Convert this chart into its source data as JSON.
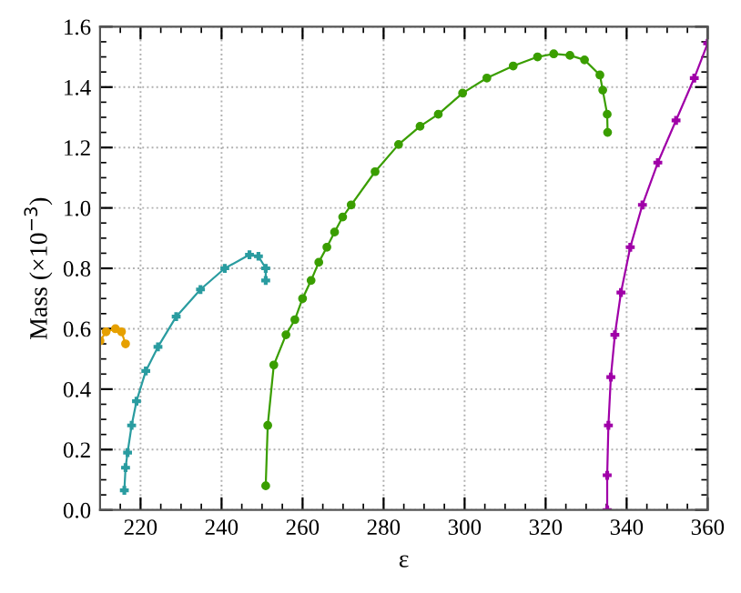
{
  "chart_data": {
    "type": "line",
    "xlabel": "ε",
    "ylabel": "Mass (×10$^{−3}$)",
    "xlim": [
      210,
      360
    ],
    "ylim": [
      0,
      1.6
    ],
    "xticks": [
      220,
      240,
      260,
      280,
      300,
      320,
      340,
      360
    ],
    "yticks": [
      {
        "value": 0,
        "label": "0.0"
      },
      {
        "value": 0.2,
        "label": "0.2"
      },
      {
        "value": 0.4,
        "label": "0.4"
      },
      {
        "value": 0.6,
        "label": "0.6"
      },
      {
        "value": 0.8,
        "label": "0.8"
      },
      {
        "value": 1.0,
        "label": "1.0"
      },
      {
        "value": 1.2,
        "label": "1.2"
      },
      {
        "value": 1.4,
        "label": "1.4"
      },
      {
        "value": 1.6,
        "label": "1.6"
      }
    ],
    "grid": true,
    "line_style": "solid",
    "series": [
      {
        "color": "#e6a000",
        "marker": "circle",
        "x": [
          210,
          211.5,
          213.8,
          215.3,
          216.3
        ],
        "values": [
          0.56,
          0.59,
          0.6,
          0.59,
          0.55
        ]
      },
      {
        "color": "#2a9ca0",
        "marker": "cross",
        "x": [
          216,
          216.3,
          216.8,
          217.8,
          219,
          221.3,
          224.3,
          228.8,
          234.8,
          240.8,
          246.9,
          249.1,
          250.9,
          250.9
        ],
        "values": [
          0.065,
          0.14,
          0.19,
          0.28,
          0.36,
          0.46,
          0.54,
          0.64,
          0.73,
          0.8,
          0.845,
          0.84,
          0.8,
          0.76
        ]
      },
      {
        "color": "#3a9e00",
        "marker": "circle",
        "x": [
          250.9,
          251.4,
          252.9,
          255.9,
          258.1,
          260,
          262.1,
          264,
          266,
          267.9,
          269.9,
          272,
          277.9,
          283.7,
          289,
          293.5,
          299.5,
          305.5,
          312,
          318,
          322,
          326,
          329.6,
          333.4,
          334.1,
          335.2,
          335.3
        ],
        "values": [
          0.08,
          0.28,
          0.48,
          0.58,
          0.63,
          0.7,
          0.76,
          0.82,
          0.87,
          0.92,
          0.97,
          1.01,
          1.12,
          1.21,
          1.27,
          1.31,
          1.38,
          1.43,
          1.47,
          1.5,
          1.51,
          1.505,
          1.49,
          1.44,
          1.39,
          1.31,
          1.25
        ]
      },
      {
        "color": "#a000a8",
        "marker": "cross",
        "x": [
          335.2,
          335.2,
          335.5,
          336.1,
          337.1,
          338.6,
          340.9,
          343.9,
          347.7,
          352.2,
          356.7,
          360
        ],
        "values": [
          0,
          0.115,
          0.28,
          0.44,
          0.58,
          0.72,
          0.87,
          1.01,
          1.15,
          1.29,
          1.43,
          1.545
        ]
      }
    ]
  }
}
